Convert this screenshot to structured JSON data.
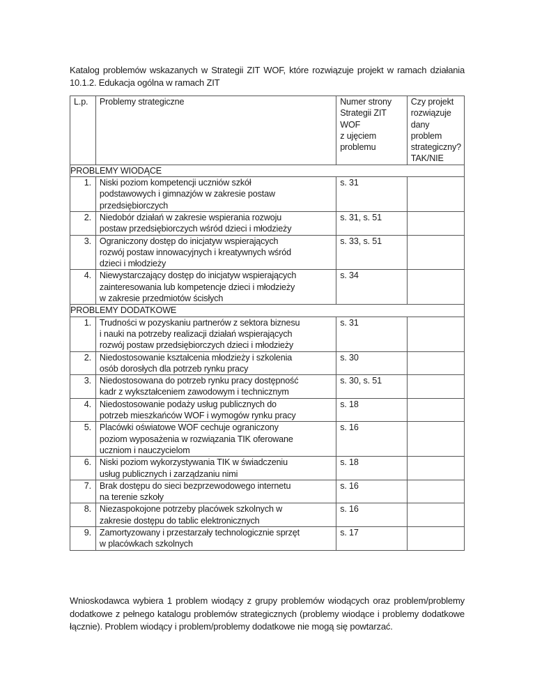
{
  "title": "Katalog problemów wskazanych w Strategii ZIT WOF, które rozwiązuje projekt w ramach działania 10.1.2. Edukacja ogólna w ramach ZIT",
  "table": {
    "headers": [
      "L.p.",
      "Problemy strategiczne",
      "Numer strony\nStrategii ZIT\nWOF\nz ujęciem\nproblemu",
      "Czy projekt\nrozwiązuje dany\nproblem\nstrategiczny?\nTAK/NIE"
    ],
    "groups": [
      {
        "label": "PROBLEMY WIODĄCE",
        "rows": [
          {
            "no": "1.",
            "problem": "Niski poziom kompetencji uczniów szkół\npodstawowych i gimnazjów w zakresie postaw\nprzedsiębiorczych",
            "page": "s. 31",
            "answer": ""
          },
          {
            "no": "2.",
            "problem": "Niedobór działań w zakresie wspierania rozwoju\npostaw przedsiębiorczych wśród dzieci i młodzieży",
            "page": "s. 31, s. 51",
            "answer": ""
          },
          {
            "no": "3.",
            "problem": "Ograniczony dostęp do inicjatyw wspierających\nrozwój postaw innowacyjnych i kreatywnych wśród\ndzieci i młodzieży",
            "page": "s. 33, s. 51",
            "answer": ""
          },
          {
            "no": "4.",
            "problem": "Niewystarczający dostęp do inicjatyw wspierających\nzainteresowania lub kompetencje dzieci i młodzieży\nw zakresie przedmiotów ścisłych",
            "page": "s. 34",
            "answer": ""
          }
        ]
      },
      {
        "label": "PROBLEMY DODATKOWE",
        "rows": [
          {
            "no": "1.",
            "problem": "Trudności w pozyskaniu partnerów z sektora biznesu\ni nauki na potrzeby realizacji działań wspierających\nrozwój postaw przedsiębiorczych dzieci i młodzieży",
            "page": "s. 31",
            "answer": ""
          },
          {
            "no": "2.",
            "problem": "Niedostosowanie kształcenia młodzieży i szkolenia\nosób dorosłych dla potrzeb rynku pracy",
            "page": "s. 30",
            "answer": ""
          },
          {
            "no": "3.",
            "problem": "Niedostosowana do potrzeb rynku pracy dostępność\nkadr z wykształceniem zawodowym i technicznym",
            "page": "s. 30, s. 51",
            "answer": ""
          },
          {
            "no": "4.",
            "problem": "Niedostosowanie podaży usług publicznych do\npotrzeb mieszkańców WOF i wymogów rynku pracy",
            "page": "s. 18",
            "answer": ""
          },
          {
            "no": "5.",
            "problem": "Placówki oświatowe WOF cechuje ograniczony\npoziom wyposażenia w rozwiązania TIK oferowane\nuczniom i nauczycielom",
            "page": "s. 16",
            "answer": ""
          },
          {
            "no": "6.",
            "problem": "Niski poziom wykorzystywania TIK w świadczeniu\nusług publicznych i zarządzaniu nimi",
            "page": "s. 18",
            "answer": ""
          },
          {
            "no": "7.",
            "problem": "Brak dostępu do sieci bezprzewodowego internetu\nna terenie szkoły",
            "page": "s. 16",
            "answer": ""
          },
          {
            "no": "8.",
            "problem": "Niezaspokojone potrzeby placówek szkolnych w\nzakresie dostępu do tablic elektronicznych",
            "page": "s. 16",
            "answer": ""
          },
          {
            "no": "9.",
            "problem": "Zamortyzowany i przestarzały technologicznie sprzęt\nw placówkach szkolnych",
            "page": "s. 17",
            "answer": ""
          }
        ]
      }
    ]
  },
  "note": "Wnioskodawca wybiera 1 problem wiodący z grupy problemów wiodących oraz problem/problemy dodatkowe z pełnego katalogu problemów strategicznych (problemy wiodące i problemy dodatkowe łącznie). Problem wiodący i problem/problemy dodatkowe nie mogą się powtarzać."
}
